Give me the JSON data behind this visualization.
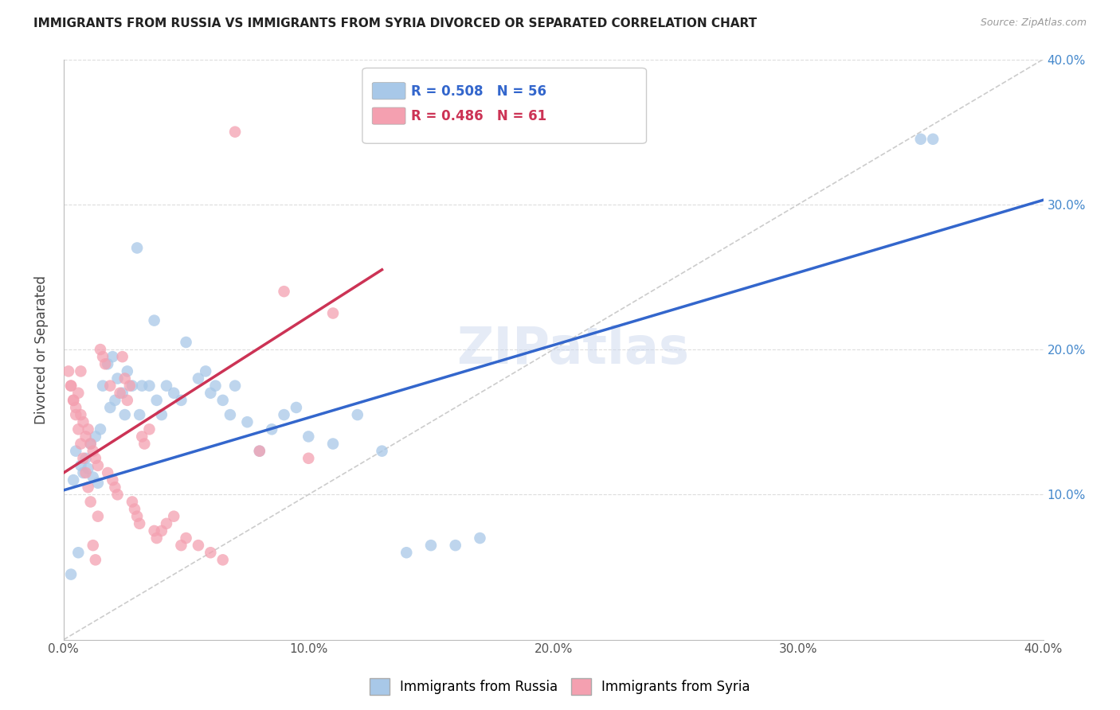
{
  "title": "IMMIGRANTS FROM RUSSIA VS IMMIGRANTS FROM SYRIA DIVORCED OR SEPARATED CORRELATION CHART",
  "source": "Source: ZipAtlas.com",
  "ylabel": "Divorced or Separated",
  "xlim": [
    0.0,
    0.4
  ],
  "ylim": [
    0.0,
    0.4
  ],
  "xticks": [
    0.0,
    0.1,
    0.2,
    0.3,
    0.4
  ],
  "yticks": [
    0.1,
    0.2,
    0.3,
    0.4
  ],
  "right_yticks": [
    0.1,
    0.2,
    0.3,
    0.4
  ],
  "legend_russia_R": "0.508",
  "legend_russia_N": "56",
  "legend_syria_R": "0.486",
  "legend_syria_N": "61",
  "russia_color": "#a8c8e8",
  "syria_color": "#f4a0b0",
  "russia_line_color": "#3366cc",
  "syria_line_color": "#cc3355",
  "diagonal_color": "#cccccc",
  "background_color": "#ffffff",
  "grid_color": "#dddddd",
  "watermark": "ZIPatlas",
  "russia_scatter_x": [
    0.005,
    0.007,
    0.008,
    0.009,
    0.01,
    0.011,
    0.012,
    0.013,
    0.014,
    0.015,
    0.016,
    0.018,
    0.019,
    0.02,
    0.021,
    0.022,
    0.024,
    0.025,
    0.026,
    0.028,
    0.03,
    0.031,
    0.032,
    0.035,
    0.037,
    0.038,
    0.04,
    0.042,
    0.045,
    0.048,
    0.05,
    0.055,
    0.058,
    0.06,
    0.062,
    0.065,
    0.068,
    0.07,
    0.075,
    0.08,
    0.085,
    0.09,
    0.095,
    0.1,
    0.11,
    0.12,
    0.13,
    0.14,
    0.15,
    0.16,
    0.17,
    0.35,
    0.355,
    0.003,
    0.004,
    0.006
  ],
  "russia_scatter_y": [
    0.13,
    0.12,
    0.115,
    0.125,
    0.118,
    0.135,
    0.112,
    0.14,
    0.108,
    0.145,
    0.175,
    0.19,
    0.16,
    0.195,
    0.165,
    0.18,
    0.17,
    0.155,
    0.185,
    0.175,
    0.27,
    0.155,
    0.175,
    0.175,
    0.22,
    0.165,
    0.155,
    0.175,
    0.17,
    0.165,
    0.205,
    0.18,
    0.185,
    0.17,
    0.175,
    0.165,
    0.155,
    0.175,
    0.15,
    0.13,
    0.145,
    0.155,
    0.16,
    0.14,
    0.135,
    0.155,
    0.13,
    0.06,
    0.065,
    0.065,
    0.07,
    0.345,
    0.345,
    0.045,
    0.11,
    0.06
  ],
  "syria_scatter_x": [
    0.003,
    0.004,
    0.005,
    0.006,
    0.007,
    0.007,
    0.008,
    0.009,
    0.01,
    0.011,
    0.012,
    0.013,
    0.014,
    0.015,
    0.016,
    0.017,
    0.018,
    0.019,
    0.02,
    0.021,
    0.022,
    0.023,
    0.024,
    0.025,
    0.026,
    0.027,
    0.028,
    0.029,
    0.03,
    0.031,
    0.032,
    0.033,
    0.035,
    0.037,
    0.038,
    0.04,
    0.042,
    0.045,
    0.048,
    0.05,
    0.055,
    0.06,
    0.065,
    0.07,
    0.08,
    0.09,
    0.1,
    0.002,
    0.003,
    0.004,
    0.005,
    0.006,
    0.007,
    0.008,
    0.009,
    0.01,
    0.011,
    0.012,
    0.013,
    0.014,
    0.11
  ],
  "syria_scatter_y": [
    0.175,
    0.165,
    0.16,
    0.17,
    0.155,
    0.185,
    0.15,
    0.14,
    0.145,
    0.135,
    0.13,
    0.125,
    0.12,
    0.2,
    0.195,
    0.19,
    0.115,
    0.175,
    0.11,
    0.105,
    0.1,
    0.17,
    0.195,
    0.18,
    0.165,
    0.175,
    0.095,
    0.09,
    0.085,
    0.08,
    0.14,
    0.135,
    0.145,
    0.075,
    0.07,
    0.075,
    0.08,
    0.085,
    0.065,
    0.07,
    0.065,
    0.06,
    0.055,
    0.35,
    0.13,
    0.24,
    0.125,
    0.185,
    0.175,
    0.165,
    0.155,
    0.145,
    0.135,
    0.125,
    0.115,
    0.105,
    0.095,
    0.065,
    0.055,
    0.085,
    0.225
  ],
  "russia_trend_x": [
    0.0,
    0.4
  ],
  "russia_trend_y": [
    0.103,
    0.303
  ],
  "syria_trend_x": [
    0.0,
    0.13
  ],
  "syria_trend_y": [
    0.115,
    0.255
  ]
}
